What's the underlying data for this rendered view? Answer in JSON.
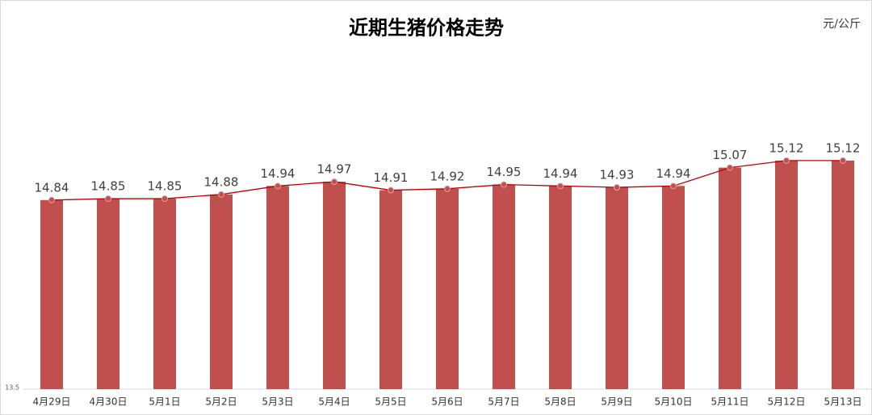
{
  "chart_data": {
    "type": "bar-line",
    "title": "近期生猪价格走势",
    "unit": "元/公斤",
    "categories": [
      "4月29日",
      "4月30日",
      "5月1日",
      "5月2日",
      "5月3日",
      "5月4日",
      "5月5日",
      "5月6日",
      "5月7日",
      "5月8日",
      "5月9日",
      "5月10日",
      "5月11日",
      "5月12日",
      "5月13日"
    ],
    "values": [
      14.84,
      14.85,
      14.85,
      14.88,
      14.94,
      14.97,
      14.91,
      14.92,
      14.95,
      14.94,
      14.93,
      14.94,
      15.07,
      15.12,
      15.12
    ],
    "color": "#c0504d",
    "line_color": "#c00000",
    "ylim": [
      13.5,
      15.8
    ],
    "yticks": [
      13.5
    ]
  }
}
